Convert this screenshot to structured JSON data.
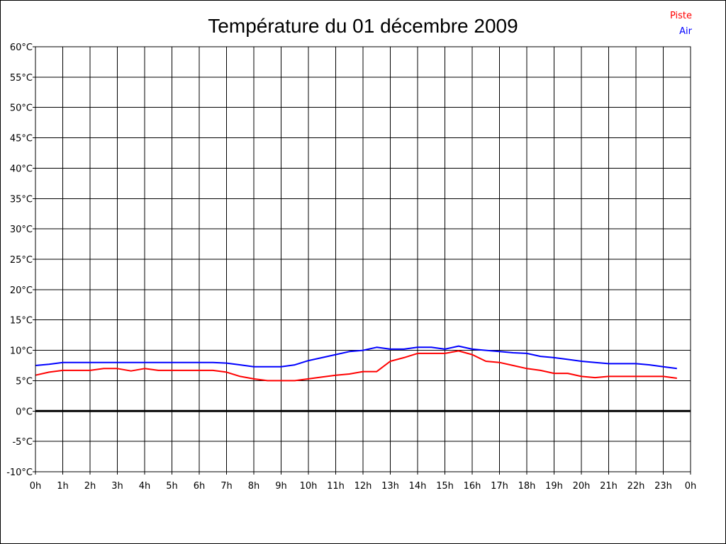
{
  "chart_data": {
    "type": "line",
    "title": "Température du 01 décembre 2009",
    "xlabel": "",
    "ylabel": "",
    "x_ticks": [
      "0h",
      "1h",
      "2h",
      "3h",
      "4h",
      "5h",
      "6h",
      "7h",
      "8h",
      "9h",
      "10h",
      "11h",
      "12h",
      "13h",
      "14h",
      "15h",
      "16h",
      "17h",
      "18h",
      "19h",
      "20h",
      "21h",
      "22h",
      "23h",
      "0h"
    ],
    "y_ticks": [
      "60°C",
      "55°C",
      "50°C",
      "45°C",
      "40°C",
      "35°C",
      "30°C",
      "25°C",
      "20°C",
      "15°C",
      "10°C",
      "5°C",
      "0°C",
      "-5°C",
      "-10°C"
    ],
    "xlim": [
      0,
      24
    ],
    "ylim": [
      -10,
      60
    ],
    "grid": true,
    "zero_line": true,
    "legend_position": "top-right",
    "x": [
      0,
      0.5,
      1,
      1.5,
      2,
      2.5,
      3,
      3.5,
      4,
      4.5,
      5,
      5.5,
      6,
      6.5,
      7,
      7.5,
      8,
      8.5,
      9,
      9.5,
      10,
      10.5,
      11,
      11.5,
      12,
      12.5,
      13,
      13.5,
      14,
      14.5,
      15,
      15.5,
      16,
      16.5,
      17,
      17.5,
      18,
      18.5,
      19,
      19.5,
      20,
      20.5,
      21,
      21.5,
      22,
      22.5,
      23,
      23.5
    ],
    "series": [
      {
        "name": "Piste",
        "color": "#ff0000",
        "values": [
          5.9,
          6.4,
          6.7,
          6.7,
          6.7,
          7.0,
          7.0,
          6.6,
          7.0,
          6.7,
          6.7,
          6.7,
          6.7,
          6.7,
          6.4,
          5.7,
          5.3,
          5.0,
          5.0,
          5.0,
          5.3,
          5.6,
          5.9,
          6.1,
          6.5,
          6.5,
          8.2,
          8.8,
          9.5,
          9.5,
          9.5,
          9.9,
          9.3,
          8.2,
          8.0,
          7.5,
          7.0,
          6.7,
          6.2,
          6.2,
          5.7,
          5.5,
          5.7,
          5.7,
          5.7,
          5.7,
          5.7,
          5.4
        ]
      },
      {
        "name": "Air",
        "color": "#0000ff",
        "values": [
          7.5,
          7.7,
          8.0,
          8.0,
          8.0,
          8.0,
          8.0,
          8.0,
          8.0,
          8.0,
          8.0,
          8.0,
          8.0,
          8.0,
          7.9,
          7.6,
          7.3,
          7.3,
          7.3,
          7.6,
          8.3,
          8.8,
          9.3,
          9.8,
          10.0,
          10.5,
          10.2,
          10.2,
          10.5,
          10.5,
          10.2,
          10.7,
          10.2,
          10.0,
          9.8,
          9.6,
          9.5,
          9.0,
          8.8,
          8.5,
          8.2,
          8.0,
          7.8,
          7.8,
          7.8,
          7.6,
          7.3,
          7.0
        ]
      }
    ]
  }
}
